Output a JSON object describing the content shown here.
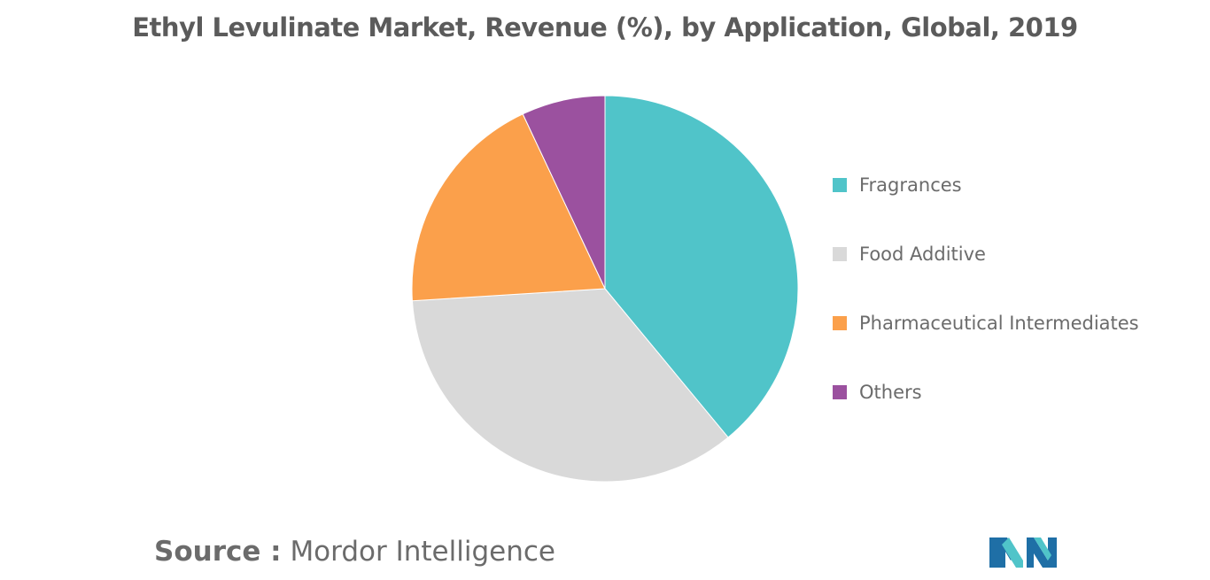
{
  "chart_data": {
    "type": "pie",
    "title": "Ethyl Levulinate Market, Revenue (%), by Application, Global, 2019",
    "slices": [
      {
        "label": "Fragrances",
        "value": 39,
        "color": "#50c4c9"
      },
      {
        "label": "Food Additive",
        "value": 35,
        "color": "#d9d9d9"
      },
      {
        "label": "Pharmaceutical Intermediates",
        "value": 19,
        "color": "#fba04b"
      },
      {
        "label": "Others",
        "value": 7,
        "color": "#9b519f"
      }
    ],
    "legend_position": "right"
  },
  "source": {
    "key": "Source :",
    "value": "Mordor Intelligence"
  },
  "logo": {
    "icon": "mordor-intelligence-logo",
    "colors": [
      "#1f6fa6",
      "#50c4c9"
    ]
  }
}
